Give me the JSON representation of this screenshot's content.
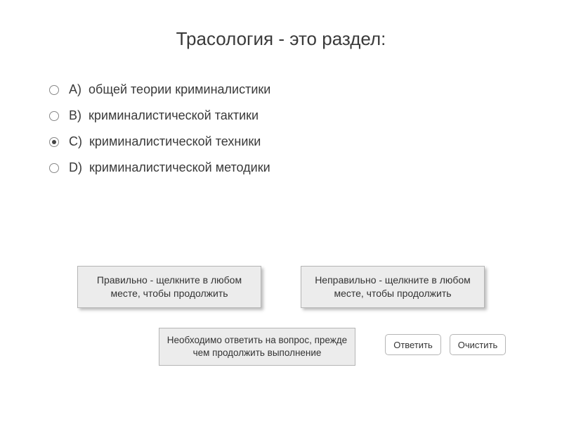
{
  "title": "Трасология - это раздел:",
  "options": [
    {
      "letter": "A)",
      "text": "общей теории криминалистики",
      "selected": false
    },
    {
      "letter": "B)",
      "text": "криминалистической тактики",
      "selected": false
    },
    {
      "letter": "C)",
      "text": "криминалистической техники",
      "selected": true
    },
    {
      "letter": "D)",
      "text": "криминалистической методики",
      "selected": false
    }
  ],
  "feedback": {
    "correct": "Правильно - щелкните в любом месте, чтобы продолжить",
    "incorrect": "Неправильно - щелкните в любом месте, чтобы продолжить"
  },
  "prompt": "Необходимо ответить на вопрос, прежде чем продолжить выполнение",
  "buttons": {
    "answer": "Ответить",
    "clear": "Очистить"
  },
  "style": {
    "background": "#ffffff",
    "text_color": "#3a3a3a",
    "title_fontsize": 26,
    "option_fontsize": 18,
    "box_bg": "#ececec",
    "box_border": "#b5b5b5",
    "shadow": "rgba(0,0,0,0.25)",
    "btn_bg": "#ffffff",
    "btn_border": "#b5b5b5",
    "btn_radius": 5,
    "radio_border": "#888888",
    "radio_dot": "#444444"
  }
}
